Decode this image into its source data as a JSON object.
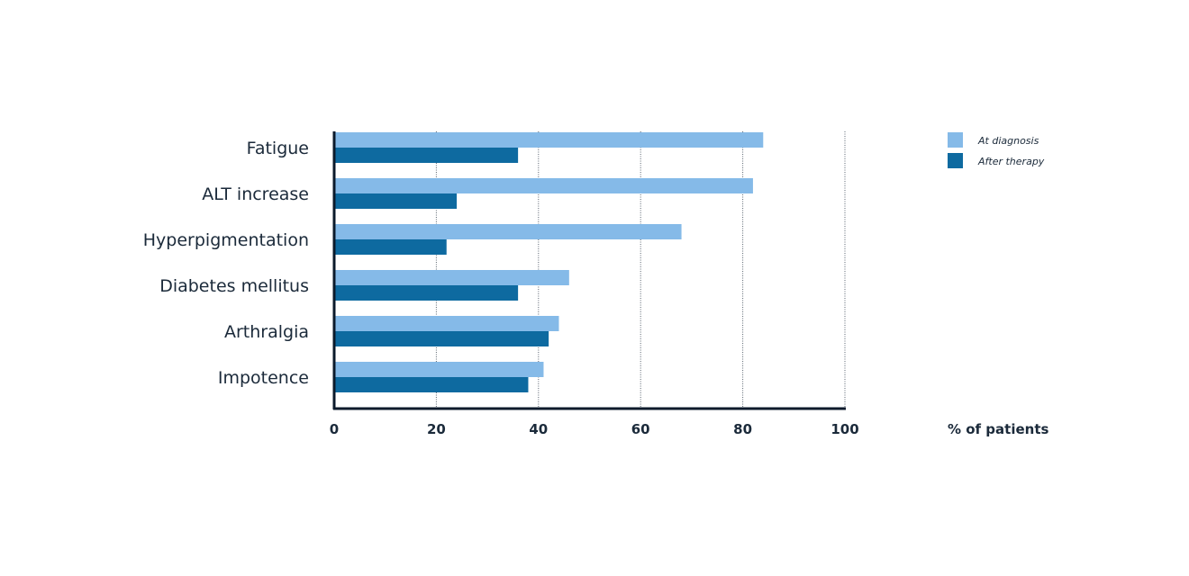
{
  "chart_data": {
    "type": "bar",
    "orientation": "horizontal",
    "categories": [
      "Fatigue",
      "ALT increase",
      "Hyperpigmentation",
      "Diabetes mellitus",
      "Arthralgia",
      "Impotence"
    ],
    "series": [
      {
        "name": "At diagnosis",
        "color": "#85bae8",
        "values": [
          84,
          82,
          68,
          46,
          44,
          41
        ]
      },
      {
        "name": "After therapy",
        "color": "#0e6aa0",
        "values": [
          36,
          24,
          22,
          36,
          42,
          38
        ]
      }
    ],
    "xlabel": "% of patients",
    "xlim": [
      0,
      100
    ],
    "xticks": [
      "0",
      "20",
      "40",
      "60",
      "80",
      "100"
    ],
    "grid": "vertical dotted",
    "legend_position": "top-right"
  }
}
